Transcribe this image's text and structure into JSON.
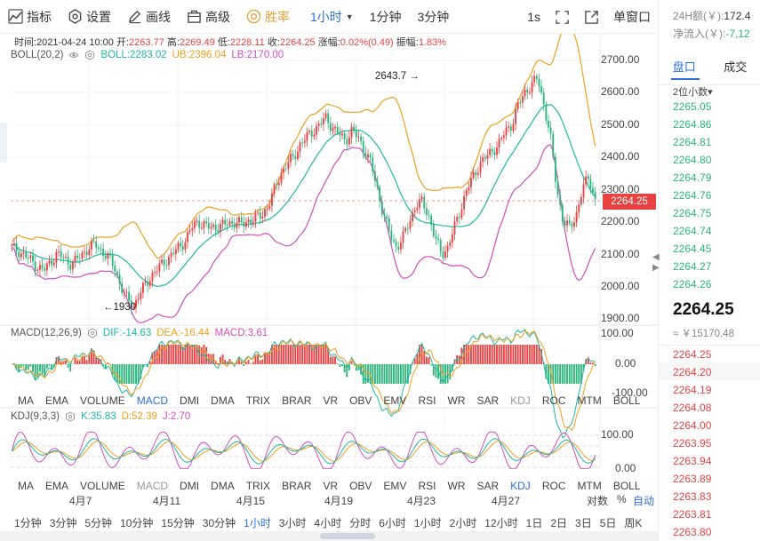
{
  "toolbar": {
    "indicators": "指标",
    "settings": "设置",
    "draw": "画线",
    "advanced": "高级",
    "winrate": "胜率",
    "interval": "1小时",
    "shortcut_1": "1分钟",
    "shortcut_2": "3分钟",
    "speed": "1s",
    "single_window": "单窗口"
  },
  "ohlc": {
    "time_label": "时间:",
    "time": "2021-04-24 10:00",
    "open_label": "开:",
    "open": "2263.77",
    "high_label": "高:",
    "high": "2269.49",
    "low_label": "低:",
    "low": "2228.11",
    "close_label": "收:",
    "close": "2264.25",
    "change_label": "涨幅:",
    "change": "0.02%(0.49)",
    "amplitude_label": "振幅:",
    "amplitude": "1.83%"
  },
  "boll": {
    "name": "BOLL(20,2)",
    "mid": "BOLL:2283.02",
    "ub": "UB:2396.04",
    "lb": "LB:2170.00",
    "color_mid": "#1fb8a4",
    "color_ub": "#f0a020",
    "color_lb": "#d24dc2"
  },
  "macd": {
    "name": "MACD(12,26,9)",
    "dif": "DIF:-14.63",
    "dea": "DEA:-16.44",
    "macd": "MACD:3.61"
  },
  "kdj": {
    "name": "KDJ(9,3,3)",
    "k": "K:35.83",
    "d": "D:52.39",
    "j": "J:2.70"
  },
  "price_axis": [
    "2700.00",
    "2600.00",
    "2500.00",
    "2400.00",
    "2300.00",
    "2200.00",
    "2100.00",
    "2000.00",
    "1900.00"
  ],
  "macd_axis": [
    "100.00",
    "0.00",
    "-100.00"
  ],
  "kdj_axis": [
    "100.00",
    "0.00"
  ],
  "current_price_tag": "2264.25",
  "marks": {
    "high": "2643.7 →",
    "low": "←1930"
  },
  "indicator_tabs": [
    "MA",
    "EMA",
    "VOLUME",
    "MACD",
    "DMI",
    "DMA",
    "TRIX",
    "BRAR",
    "VR",
    "OBV",
    "EMV",
    "RSI",
    "WR",
    "SAR",
    "KDJ",
    "ROC",
    "MTM",
    "BOLL"
  ],
  "dates": [
    "4月7",
    "4月11",
    "4月15",
    "4月19",
    "4月23",
    "4月27"
  ],
  "axis_controls": {
    "log": "对数",
    "pct": "%",
    "auto": "自动"
  },
  "periods": [
    "1分钟",
    "3分钟",
    "5分钟",
    "10分钟",
    "15分钟",
    "30分钟",
    "1小时",
    "3小时",
    "4小时",
    "分时",
    "6小时",
    "1小时",
    "2小时",
    "12小时",
    "1日",
    "2日",
    "3日",
    "5日",
    "周K"
  ],
  "panel": {
    "vol_label": "24H额(￥):",
    "vol_value": "172.4",
    "inflow_label": "净流入(￥):",
    "inflow_value": "-7,12",
    "tab_book": "盘口",
    "tab_trades": "成交",
    "decimals": "2位小数▾",
    "asks": [
      "2265.05",
      "2264.86",
      "2264.81",
      "2264.80",
      "2264.79",
      "2264.76",
      "2264.75",
      "2264.74",
      "2264.45",
      "2264.27",
      "2264.26"
    ],
    "last_price": "2264.25",
    "last_cny": "≈ ￥15170.48",
    "bids": [
      "2264.25",
      "2264.20",
      "2264.19",
      "2264.08",
      "2264.00",
      "2263.95",
      "2263.94",
      "2263.89",
      "2263.83",
      "2263.81",
      "2263.80"
    ]
  },
  "chart_data": {
    "type": "candlestick",
    "interval": "1h",
    "x_labels": [
      "4月7",
      "4月11",
      "4月15",
      "4月19",
      "4月23",
      "4月27"
    ],
    "ylim": [
      1900,
      2700
    ],
    "close_series": [
      2120,
      2110,
      2095,
      2080,
      2060,
      2050,
      2075,
      2100,
      2090,
      2070,
      2080,
      2100,
      2120,
      2130,
      2110,
      2090,
      2060,
      2000,
      1960,
      1940,
      1980,
      2010,
      2040,
      2060,
      2080,
      2100,
      2120,
      2140,
      2180,
      2200,
      2190,
      2180,
      2185,
      2190,
      2195,
      2200,
      2190,
      2205,
      2210,
      2220,
      2250,
      2300,
      2350,
      2380,
      2400,
      2440,
      2460,
      2480,
      2500,
      2520,
      2490,
      2470,
      2450,
      2480,
      2460,
      2420,
      2380,
      2300,
      2220,
      2160,
      2120,
      2150,
      2200,
      2250,
      2260,
      2220,
      2150,
      2100,
      2120,
      2180,
      2240,
      2300,
      2340,
      2380,
      2400,
      2420,
      2440,
      2480,
      2500,
      2560,
      2600,
      2620,
      2643.7,
      2560,
      2460,
      2300,
      2200,
      2180,
      2220,
      2300,
      2340,
      2264.25
    ],
    "markers": {
      "high": 2643.7,
      "low": 1930
    },
    "last": 2264.25
  }
}
